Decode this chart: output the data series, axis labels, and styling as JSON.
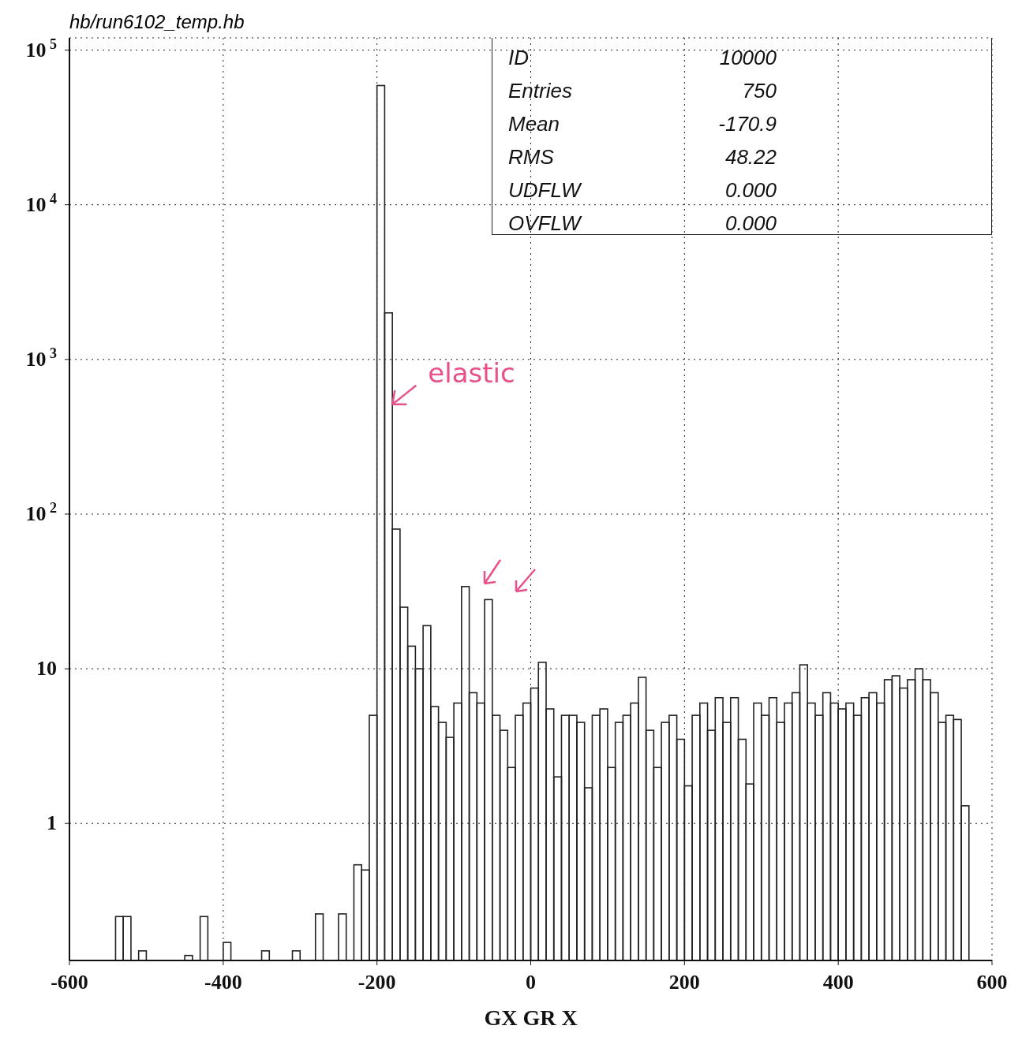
{
  "chart_data": {
    "type": "histogram",
    "title": "hb/run6102_temp.hb",
    "xlabel": "GX GR X",
    "bins": [
      -600,
      -590,
      -580,
      -570,
      -560,
      -550,
      -540,
      -530,
      -520,
      -510,
      -500,
      -490,
      -480,
      -470,
      -460,
      -450,
      -440,
      -430,
      -420,
      -410,
      -400,
      -390,
      -380,
      -370,
      -360,
      -350,
      -340,
      -330,
      -320,
      -310,
      -300,
      -290,
      -280,
      -270,
      -260,
      -250,
      -240,
      -230,
      -220,
      -210,
      -200,
      -190,
      -180,
      -170,
      -160,
      -150,
      -140,
      -130,
      -120,
      -110,
      -100,
      -90,
      -80,
      -70,
      -60,
      -50,
      -40,
      -30,
      -20,
      -10,
      0,
      10,
      20,
      30,
      40,
      50,
      60,
      70,
      80,
      90,
      100,
      110,
      120,
      130,
      140,
      150,
      160,
      170,
      180,
      190,
      200,
      210,
      220,
      230,
      240,
      250,
      260,
      270,
      280,
      290,
      300,
      310,
      320,
      330,
      340,
      350,
      360,
      370,
      380,
      390,
      400,
      410,
      420,
      430,
      440,
      450,
      460,
      470,
      480,
      490,
      500,
      510,
      520,
      530,
      540,
      550,
      560,
      570,
      580,
      590,
      600
    ],
    "values": [
      null,
      null,
      null,
      null,
      null,
      null,
      0.25,
      0.25,
      null,
      0.15,
      null,
      null,
      null,
      null,
      null,
      0.14,
      null,
      0.25,
      null,
      null,
      0.17,
      null,
      null,
      null,
      null,
      0.15,
      null,
      null,
      null,
      0.15,
      null,
      null,
      0.26,
      null,
      null,
      0.26,
      null,
      0.54,
      0.5,
      5,
      59000,
      2000,
      80,
      25,
      14,
      10,
      19,
      5.7,
      4.5,
      3.6,
      6,
      34,
      7,
      6,
      28,
      5,
      4,
      2.3,
      5,
      6,
      7.5,
      11,
      5.5,
      2,
      5,
      5,
      4.5,
      1.7,
      5,
      5.5,
      2.3,
      4.5,
      5,
      6,
      8.8,
      4,
      2.3,
      4.5,
      5,
      3.5,
      1.75,
      5,
      6,
      4,
      6.5,
      4.5,
      6.5,
      3.5,
      1.8,
      6,
      5,
      6.5,
      4.5,
      6,
      7,
      10.6,
      6,
      5,
      7,
      6,
      5.5,
      6,
      5,
      6.5,
      7,
      6,
      8.5,
      9,
      7.5,
      8.5,
      10,
      8.5,
      7,
      4.5,
      5,
      4.7,
      1.3,
      null,
      null,
      null
    ],
    "color": "#222222",
    "log": "y",
    "xlim": [
      -600,
      600
    ],
    "ylim": [
      0.13,
      120000
    ],
    "xticks": [
      -600,
      -400,
      -200,
      0,
      200,
      400,
      600
    ],
    "yticks": [
      1,
      10,
      {
        "value": 100,
        "label": "10$^{2}$"
      },
      {
        "value": 1000,
        "label": "10$^{3}$"
      },
      {
        "value": 10000,
        "label": "10$^{4}$"
      },
      {
        "value": 100000,
        "label": "10$^{5}$"
      }
    ],
    "grid": true,
    "annotations": [
      {
        "text": "elastic",
        "x": -185,
        "y": 500
      },
      "ID",
      "10000",
      "Entries",
      "750",
      "Mean",
      "-170.9",
      "RMS",
      "48.22",
      "UDFLW",
      "0.000",
      "OVFLW",
      "0.000"
    ]
  }
}
